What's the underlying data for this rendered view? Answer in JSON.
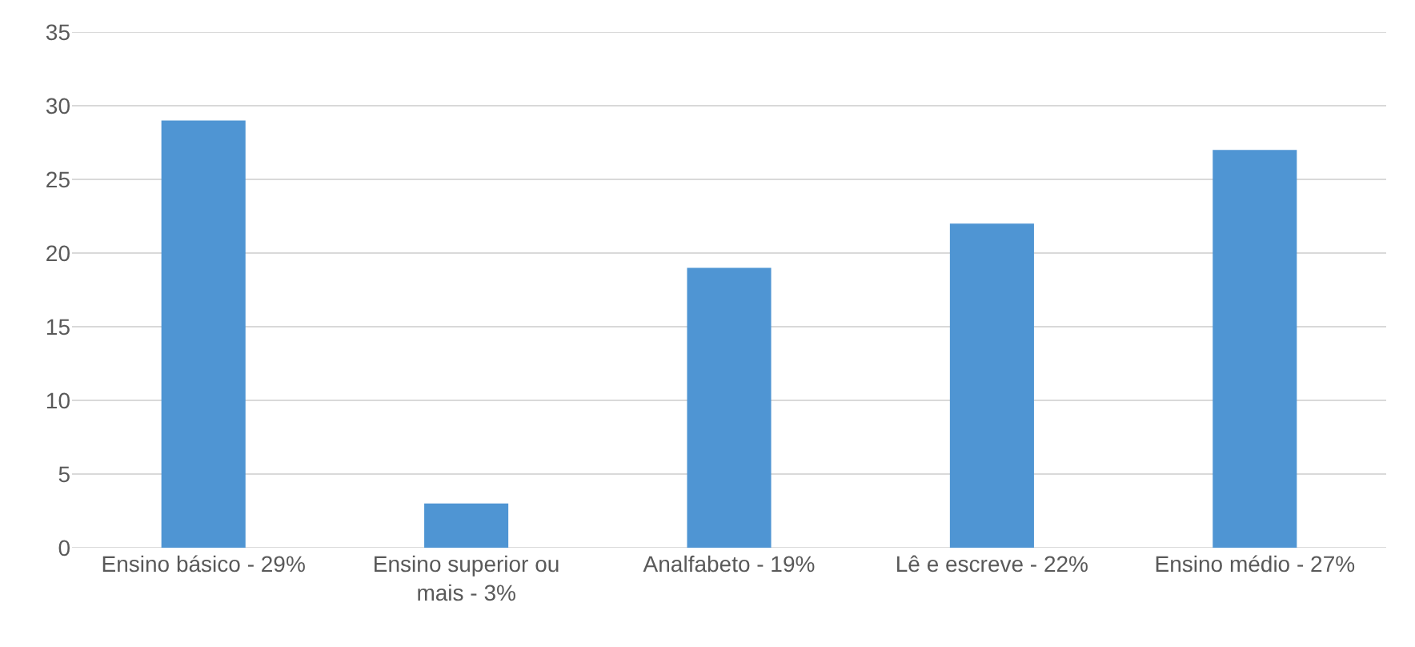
{
  "chart_data": {
    "type": "bar",
    "categories": [
      "Ensino básico - 29%",
      "Ensino superior ou mais - 3%",
      "Analfabeto - 19%",
      "Lê e escreve - 22%",
      "Ensino médio - 27%"
    ],
    "values": [
      29,
      3,
      19,
      22,
      27
    ],
    "color": "#4f95d3",
    "ylim": [
      0,
      35
    ],
    "yticks": [
      0,
      5,
      10,
      15,
      20,
      25,
      30,
      35
    ],
    "grid": "y"
  }
}
